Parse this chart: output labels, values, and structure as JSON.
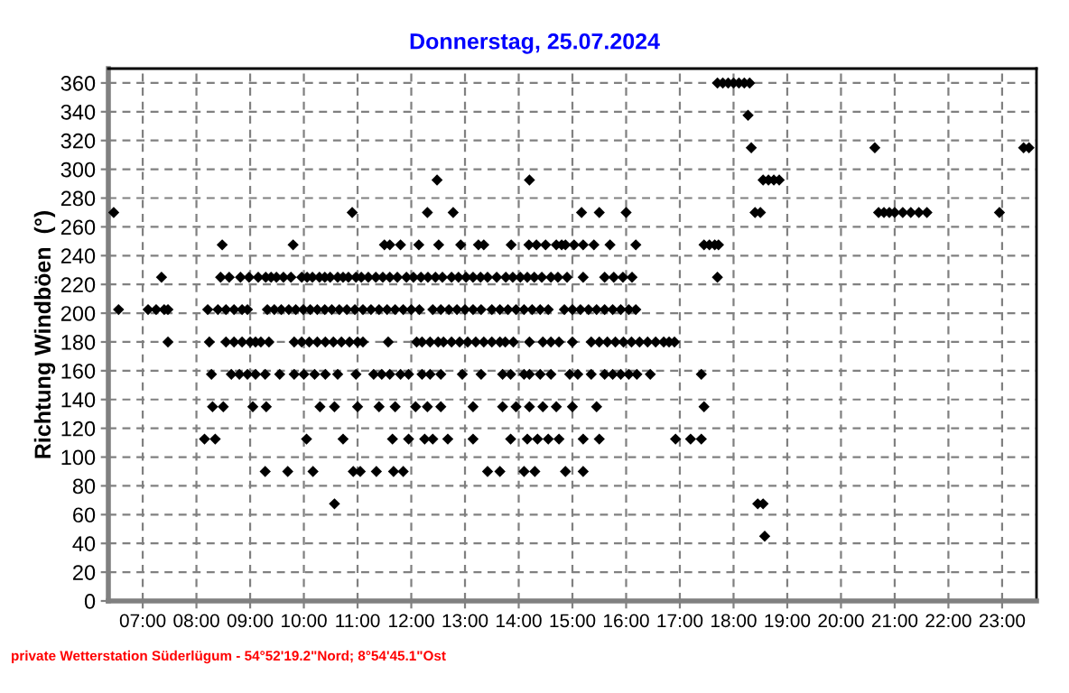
{
  "chart_data": {
    "type": "scatter",
    "title": "Donnerstag, 25.07.2024",
    "ylabel": "Richtung Windböen  (°)",
    "annotations": [
      "private Wetterstation Süderlügum - 54°52'19.2\"Nord; 8°54'45.1\"Ost"
    ],
    "xlim": [
      6.36,
      23.64
    ],
    "ylim": [
      0,
      370
    ],
    "xticks": [
      {
        "value": 7,
        "label": "07:00"
      },
      {
        "value": 8,
        "label": "08:00"
      },
      {
        "value": 9,
        "label": "09:00"
      },
      {
        "value": 10,
        "label": "10:00"
      },
      {
        "value": 11,
        "label": "11:00"
      },
      {
        "value": 12,
        "label": "12:00"
      },
      {
        "value": 13,
        "label": "13:00"
      },
      {
        "value": 14,
        "label": "14:00"
      },
      {
        "value": 15,
        "label": "15:00"
      },
      {
        "value": 16,
        "label": "16:00"
      },
      {
        "value": 17,
        "label": "17:00"
      },
      {
        "value": 18,
        "label": "18:00"
      },
      {
        "value": 19,
        "label": "19:00"
      },
      {
        "value": 20,
        "label": "20:00"
      },
      {
        "value": 21,
        "label": "21:00"
      },
      {
        "value": 22,
        "label": "22:00"
      },
      {
        "value": 23,
        "label": "23:00"
      }
    ],
    "yticks": [
      0,
      20,
      40,
      60,
      80,
      100,
      120,
      140,
      160,
      180,
      200,
      220,
      240,
      260,
      280,
      300,
      320,
      340,
      360
    ],
    "grid": true,
    "marker": "diamond",
    "series": [
      {
        "color": "#000000",
        "x": [
          17.7,
          17.8,
          17.9,
          18.0,
          18.1,
          18.2,
          18.3
        ],
        "values": [
          360,
          360,
          360,
          360,
          360,
          360,
          360
        ]
      },
      {
        "color": "#000000",
        "x": [
          18.27
        ],
        "values": [
          337.5
        ]
      },
      {
        "color": "#000000",
        "x": [
          18.33,
          20.63,
          23.4,
          23.5
        ],
        "values": [
          315,
          315,
          315,
          315
        ]
      },
      {
        "color": "#000000",
        "x": [
          12.48,
          14.2,
          18.55,
          18.65,
          18.75,
          18.85
        ],
        "values": [
          292.5,
          292.5,
          292.5,
          292.5,
          292.5,
          292.5
        ]
      },
      {
        "color": "#000000",
        "x": [
          6.46,
          10.9,
          12.3,
          12.78,
          15.17,
          15.5,
          16.0,
          18.4,
          18.5,
          20.7,
          20.8,
          20.9,
          21.0,
          21.15,
          21.3,
          21.45,
          21.6,
          22.95
        ],
        "values": [
          270,
          270,
          270,
          270,
          270,
          270,
          270,
          270,
          270,
          270,
          270,
          270,
          270,
          270,
          270,
          270,
          270,
          270
        ]
      },
      {
        "color": "#000000",
        "x": [
          8.48,
          9.8,
          11.5,
          11.6,
          11.8,
          12.14,
          12.51,
          12.92,
          13.25,
          13.35,
          13.86,
          14.19,
          14.33,
          14.5,
          14.7,
          14.8,
          14.87,
          15.03,
          15.2,
          15.4,
          15.7,
          16.18,
          17.45,
          17.55,
          17.65,
          17.72
        ],
        "values": [
          247.5,
          247.5,
          247.5,
          247.5,
          247.5,
          247.5,
          247.5,
          247.5,
          247.5,
          247.5,
          247.5,
          247.5,
          247.5,
          247.5,
          247.5,
          247.5,
          247.5,
          247.5,
          247.5,
          247.5,
          247.5,
          247.5,
          247.5,
          247.5,
          247.5,
          247.5
        ]
      },
      {
        "color": "#000000",
        "x": [
          7.35,
          8.45,
          8.61,
          8.82,
          8.98,
          9.15,
          9.29,
          9.39,
          9.49,
          9.62,
          9.76,
          9.96,
          10.06,
          10.16,
          10.29,
          10.39,
          10.49,
          10.63,
          10.73,
          10.83,
          10.97,
          11.07,
          11.2,
          11.34,
          11.47,
          11.6,
          11.74,
          11.91,
          12.04,
          12.18,
          12.31,
          12.45,
          12.58,
          12.75,
          12.88,
          13.02,
          13.15,
          13.29,
          13.42,
          13.59,
          13.76,
          13.89,
          14.03,
          14.16,
          14.29,
          14.43,
          14.6,
          14.73,
          14.9,
          15.2,
          15.6,
          15.77,
          15.94,
          16.11,
          17.7
        ],
        "values": [
          225,
          225,
          225,
          225,
          225,
          225,
          225,
          225,
          225,
          225,
          225,
          225,
          225,
          225,
          225,
          225,
          225,
          225,
          225,
          225,
          225,
          225,
          225,
          225,
          225,
          225,
          225,
          225,
          225,
          225,
          225,
          225,
          225,
          225,
          225,
          225,
          225,
          225,
          225,
          225,
          225,
          225,
          225,
          225,
          225,
          225,
          225,
          225,
          225,
          225,
          225,
          225,
          225,
          225,
          225
        ]
      },
      {
        "color": "#000000",
        "x": [
          6.55,
          7.1,
          7.25,
          7.4,
          7.47,
          8.21,
          8.4,
          8.55,
          8.7,
          8.85,
          8.95,
          9.32,
          9.45,
          9.58,
          9.72,
          9.85,
          9.99,
          10.12,
          10.25,
          10.39,
          10.52,
          10.66,
          10.8,
          10.95,
          11.1,
          11.25,
          11.4,
          11.55,
          11.7,
          11.85,
          12.0,
          12.15,
          12.4,
          12.55,
          12.7,
          12.85,
          13.0,
          13.15,
          13.3,
          13.5,
          13.65,
          13.8,
          13.95,
          14.1,
          14.25,
          14.4,
          14.55,
          14.85,
          15.0,
          15.15,
          15.3,
          15.45,
          15.6,
          15.75,
          15.9,
          16.05,
          16.18
        ],
        "values": [
          202.5,
          202.5,
          202.5,
          202.5,
          202.5,
          202.5,
          202.5,
          202.5,
          202.5,
          202.5,
          202.5,
          202.5,
          202.5,
          202.5,
          202.5,
          202.5,
          202.5,
          202.5,
          202.5,
          202.5,
          202.5,
          202.5,
          202.5,
          202.5,
          202.5,
          202.5,
          202.5,
          202.5,
          202.5,
          202.5,
          202.5,
          202.5,
          202.5,
          202.5,
          202.5,
          202.5,
          202.5,
          202.5,
          202.5,
          202.5,
          202.5,
          202.5,
          202.5,
          202.5,
          202.5,
          202.5,
          202.5,
          202.5,
          202.5,
          202.5,
          202.5,
          202.5,
          202.5,
          202.5,
          202.5,
          202.5,
          202.5
        ]
      },
      {
        "color": "#000000",
        "x": [
          7.47,
          8.24,
          8.55,
          8.7,
          8.85,
          9.0,
          9.1,
          9.2,
          9.35,
          9.82,
          9.96,
          10.1,
          10.25,
          10.4,
          10.55,
          10.7,
          10.85,
          11.0,
          11.1,
          11.57,
          12.1,
          12.2,
          12.35,
          12.5,
          12.6,
          12.75,
          12.9,
          13.05,
          13.2,
          13.35,
          13.5,
          13.65,
          13.75,
          13.9,
          14.2,
          14.45,
          14.6,
          14.75,
          15.0,
          15.35,
          15.5,
          15.65,
          15.8,
          15.95,
          16.1,
          16.25,
          16.4,
          16.55,
          16.7,
          16.8,
          16.9
        ],
        "values": [
          180,
          180,
          180,
          180,
          180,
          180,
          180,
          180,
          180,
          180,
          180,
          180,
          180,
          180,
          180,
          180,
          180,
          180,
          180,
          180,
          180,
          180,
          180,
          180,
          180,
          180,
          180,
          180,
          180,
          180,
          180,
          180,
          180,
          180,
          180,
          180,
          180,
          180,
          180,
          180,
          180,
          180,
          180,
          180,
          180,
          180,
          180,
          180,
          180,
          180,
          180
        ]
      },
      {
        "color": "#000000",
        "x": [
          8.28,
          8.65,
          8.8,
          8.95,
          9.1,
          9.28,
          9.55,
          9.82,
          10.0,
          10.2,
          10.4,
          10.63,
          10.97,
          11.3,
          11.45,
          11.6,
          11.8,
          11.95,
          12.2,
          12.35,
          12.55,
          12.95,
          13.3,
          13.7,
          13.85,
          14.1,
          14.2,
          14.4,
          14.6,
          14.95,
          15.1,
          15.35,
          15.6,
          15.75,
          15.9,
          16.05,
          16.2,
          16.45,
          17.4
        ],
        "values": [
          157.5,
          157.5,
          157.5,
          157.5,
          157.5,
          157.5,
          157.5,
          157.5,
          157.5,
          157.5,
          157.5,
          157.5,
          157.5,
          157.5,
          157.5,
          157.5,
          157.5,
          157.5,
          157.5,
          157.5,
          157.5,
          157.5,
          157.5,
          157.5,
          157.5,
          157.5,
          157.5,
          157.5,
          157.5,
          157.5,
          157.5,
          157.5,
          157.5,
          157.5,
          157.5,
          157.5,
          157.5,
          157.5,
          157.5
        ]
      },
      {
        "color": "#000000",
        "x": [
          8.3,
          8.5,
          9.05,
          9.3,
          10.3,
          10.57,
          11.0,
          11.4,
          11.7,
          12.08,
          12.3,
          12.55,
          13.15,
          13.7,
          13.95,
          14.2,
          14.45,
          14.7,
          15.0,
          15.45,
          17.45
        ],
        "values": [
          135,
          135,
          135,
          135,
          135,
          135,
          135,
          135,
          135,
          135,
          135,
          135,
          135,
          135,
          135,
          135,
          135,
          135,
          135,
          135,
          135
        ]
      },
      {
        "color": "#000000",
        "x": [
          8.15,
          8.35,
          10.05,
          10.73,
          11.65,
          11.95,
          12.25,
          12.4,
          12.68,
          13.15,
          13.85,
          14.16,
          14.35,
          14.55,
          14.75,
          15.2,
          15.5,
          16.92,
          17.2,
          17.4
        ],
        "values": [
          112.5,
          112.5,
          112.5,
          112.5,
          112.5,
          112.5,
          112.5,
          112.5,
          112.5,
          112.5,
          112.5,
          112.5,
          112.5,
          112.5,
          112.5,
          112.5,
          112.5,
          112.5,
          112.5,
          112.5
        ]
      },
      {
        "color": "#000000",
        "x": [
          9.28,
          9.7,
          10.17,
          10.92,
          11.05,
          11.35,
          11.67,
          11.85,
          13.42,
          13.65,
          14.1,
          14.3,
          14.87,
          15.2
        ],
        "values": [
          90,
          90,
          90,
          90,
          90,
          90,
          90,
          90,
          90,
          90,
          90,
          90,
          90,
          90
        ]
      },
      {
        "color": "#000000",
        "x": [
          10.57,
          18.45,
          18.55
        ],
        "values": [
          67.5,
          67.5,
          67.5
        ]
      },
      {
        "color": "#000000",
        "x": [
          18.58
        ],
        "values": [
          45
        ]
      }
    ]
  }
}
